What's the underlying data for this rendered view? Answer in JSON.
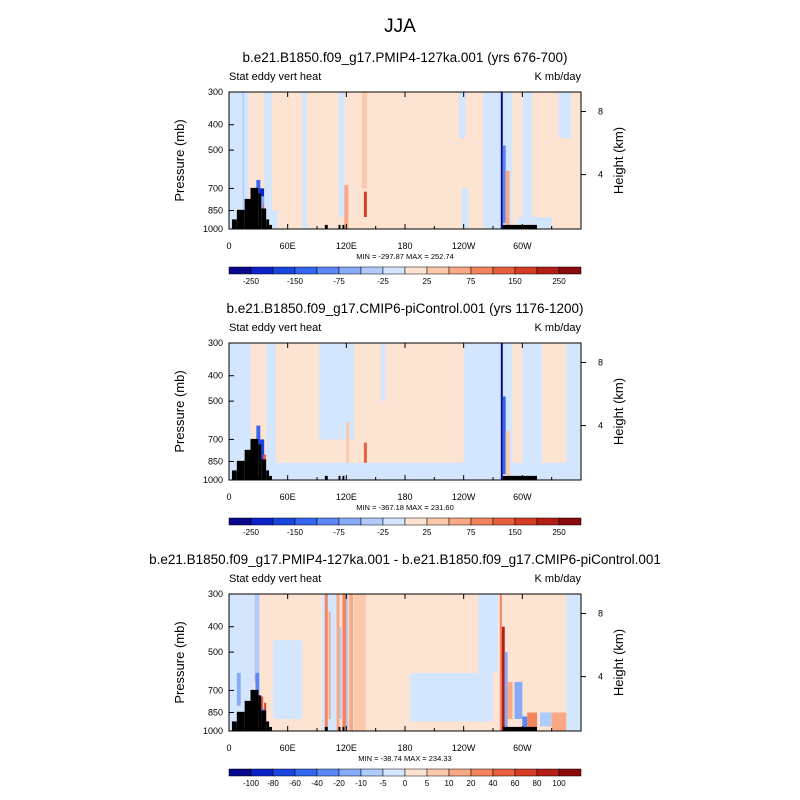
{
  "figure": {
    "title": "JJA"
  },
  "chart_data": [
    {
      "type": "heatmap",
      "title": "b.e21.B1850.f09_g17.PMIP4-127ka.001 (yrs 676-700)",
      "left_string": "Stat eddy vert heat",
      "right_string": "K mb/day",
      "ylabel": "Pressure (mb)",
      "ylabel_right": "Height (km)",
      "x_ticks": [
        "0",
        "60E",
        "120E",
        "180",
        "120W",
        "60W"
      ],
      "y_ticks": [
        "300",
        "400",
        "500",
        "700",
        "850",
        "1000"
      ],
      "y_right_ticks": [
        "8",
        "4"
      ],
      "stats": "MIN = -297.87   MAX = 252.74",
      "colorbar_labels": [
        "-250",
        "-150",
        "-75",
        "-25",
        "25",
        "75",
        "150",
        "250"
      ],
      "colorbar_levels": [
        -300,
        -250,
        -200,
        -150,
        -100,
        -75,
        -50,
        -25,
        0,
        25,
        50,
        75,
        100,
        150,
        200,
        250,
        300
      ],
      "x_range": [
        0,
        360
      ],
      "y_range_mb": [
        300,
        1000
      ],
      "y_scale": "log",
      "min": -297.87,
      "max": 252.74,
      "background_value": 10,
      "features": [
        {
          "lon": [
            0,
            20
          ],
          "p": [
            300,
            1000
          ],
          "value": -10
        },
        {
          "lon": [
            14,
            15.5
          ],
          "p": [
            300,
            1000
          ],
          "value": -40
        },
        {
          "lon": [
            28,
            32
          ],
          "p": [
            650,
            830
          ],
          "value": -120
        },
        {
          "lon": [
            31,
            36
          ],
          "p": [
            700,
            1000
          ],
          "value": -250
        },
        {
          "lon": [
            28,
            38
          ],
          "p": [
            750,
            1000
          ],
          "value": -60
        },
        {
          "lon": [
            35,
            38
          ],
          "p": [
            800,
            1000
          ],
          "value": 120
        },
        {
          "lon": [
            25,
            50
          ],
          "p": [
            850,
            1000
          ],
          "value": -10
        },
        {
          "lon": [
            36,
            44
          ],
          "p": [
            300,
            900
          ],
          "value": -12
        },
        {
          "lon": [
            75,
            80
          ],
          "p": [
            300,
            1000
          ],
          "value": -15
        },
        {
          "lon": [
            112,
            118
          ],
          "p": [
            300,
            900
          ],
          "value": -15
        },
        {
          "lon": [
            136,
            141
          ],
          "p": [
            300,
            700
          ],
          "value": 40
        },
        {
          "lon": [
            138,
            141
          ],
          "p": [
            720,
            900
          ],
          "value": 150
        },
        {
          "lon": [
            118,
            122
          ],
          "p": [
            680,
            1000
          ],
          "value": 60
        },
        {
          "lon": [
            235,
            242
          ],
          "p": [
            300,
            450
          ],
          "value": -10
        },
        {
          "lon": [
            238,
            245
          ],
          "p": [
            700,
            1000
          ],
          "value": -15
        },
        {
          "lon": [
            260,
            290
          ],
          "p": [
            300,
            1000
          ],
          "value": -10
        },
        {
          "lon": [
            278,
            280
          ],
          "p": [
            300,
            1000
          ],
          "value": -300
        },
        {
          "lon": [
            280,
            283
          ],
          "p": [
            480,
            950
          ],
          "value": -100
        },
        {
          "lon": [
            283,
            287
          ],
          "p": [
            600,
            1000
          ],
          "value": 50
        },
        {
          "lon": [
            300,
            310
          ],
          "p": [
            300,
            1000
          ],
          "value": -12
        },
        {
          "lon": [
            302,
            306
          ],
          "p": [
            930,
            1000
          ],
          "value": -80
        },
        {
          "lon": [
            295,
            330
          ],
          "p": [
            900,
            1000
          ],
          "value": -10
        },
        {
          "lon": [
            337,
            350
          ],
          "p": [
            300,
            450
          ],
          "value": -10
        }
      ]
    },
    {
      "type": "heatmap",
      "title": "b.e21.B1850.f09_g17.CMIP6-piControl.001 (yrs 1176-1200)",
      "left_string": "Stat eddy vert heat",
      "right_string": "K mb/day",
      "ylabel": "Pressure (mb)",
      "ylabel_right": "Height (km)",
      "x_ticks": [
        "0",
        "60E",
        "120E",
        "180",
        "120W",
        "60W"
      ],
      "y_ticks": [
        "300",
        "400",
        "500",
        "700",
        "850",
        "1000"
      ],
      "y_right_ticks": [
        "8",
        "4"
      ],
      "stats": "MIN = -367.18   MAX = 231.60",
      "colorbar_labels": [
        "-250",
        "-150",
        "-75",
        "-25",
        "25",
        "75",
        "150",
        "250"
      ],
      "colorbar_levels": [
        -300,
        -250,
        -200,
        -150,
        -100,
        -75,
        -50,
        -25,
        0,
        25,
        50,
        75,
        100,
        150,
        200,
        250,
        300
      ],
      "x_range": [
        0,
        360
      ],
      "y_range_mb": [
        300,
        1000
      ],
      "y_scale": "log",
      "min": -367.18,
      "max": 231.6,
      "background_value": 10,
      "features": [
        {
          "lon": [
            0,
            22
          ],
          "p": [
            300,
            1000
          ],
          "value": -10
        },
        {
          "lon": [
            28,
            32
          ],
          "p": [
            620,
            830
          ],
          "value": -150
        },
        {
          "lon": [
            31,
            36
          ],
          "p": [
            700,
            1000
          ],
          "value": -200
        },
        {
          "lon": [
            35,
            38
          ],
          "p": [
            800,
            1000
          ],
          "value": 100
        },
        {
          "lon": [
            20,
            55
          ],
          "p": [
            860,
            1000
          ],
          "value": -12
        },
        {
          "lon": [
            38,
            48
          ],
          "p": [
            300,
            900
          ],
          "value": -12
        },
        {
          "lon": [
            92,
            128
          ],
          "p": [
            300,
            700
          ],
          "value": -10
        },
        {
          "lon": [
            120,
            123
          ],
          "p": [
            600,
            1000
          ],
          "value": 30
        },
        {
          "lon": [
            138,
            141
          ],
          "p": [
            720,
            900
          ],
          "value": 100
        },
        {
          "lon": [
            155,
            160
          ],
          "p": [
            300,
            500
          ],
          "value": -10
        },
        {
          "lon": [
            240,
            290
          ],
          "p": [
            300,
            1000
          ],
          "value": -12
        },
        {
          "lon": [
            0,
            360
          ],
          "p": [
            860,
            1000
          ],
          "value": -10
        },
        {
          "lon": [
            278,
            280
          ],
          "p": [
            300,
            1000
          ],
          "value": -360
        },
        {
          "lon": [
            280,
            283
          ],
          "p": [
            480,
            950
          ],
          "value": -150
        },
        {
          "lon": [
            283,
            287
          ],
          "p": [
            650,
            1000
          ],
          "value": 40
        },
        {
          "lon": [
            300,
            320
          ],
          "p": [
            300,
            1000
          ],
          "value": -10
        },
        {
          "lon": [
            345,
            360
          ],
          "p": [
            300,
            1000
          ],
          "value": -10
        }
      ]
    },
    {
      "type": "heatmap",
      "title": "b.e21.B1850.f09_g17.PMIP4-127ka.001 - b.e21.B1850.f09_g17.CMIP6-piControl.001",
      "left_string": "Stat eddy vert heat",
      "right_string": "K mb/day",
      "ylabel": "Pressure (mb)",
      "ylabel_right": "Height (km)",
      "x_ticks": [
        "0",
        "60E",
        "120E",
        "180",
        "120W",
        "60W"
      ],
      "y_ticks": [
        "300",
        "400",
        "500",
        "700",
        "850",
        "1000"
      ],
      "y_right_ticks": [
        "8",
        "4"
      ],
      "stats": "MIN = -38.74   MAX = 234.33",
      "colorbar_labels": [
        "-100",
        "-80",
        "-60",
        "-40",
        "-20",
        "-10",
        "-5",
        "0",
        "5",
        "10",
        "20",
        "40",
        "60",
        "80",
        "100"
      ],
      "colorbar_levels": [
        -120,
        -100,
        -80,
        -60,
        -40,
        -20,
        -10,
        -5,
        0,
        5,
        10,
        20,
        40,
        60,
        80,
        100,
        120
      ],
      "x_range": [
        0,
        360
      ],
      "y_range_mb": [
        300,
        1000
      ],
      "y_scale": "log",
      "min": -38.74,
      "max": 234.33,
      "background_value": 3,
      "features": [
        {
          "lon": [
            0,
            25
          ],
          "p": [
            300,
            1000
          ],
          "value": -4
        },
        {
          "lon": [
            26,
            31
          ],
          "p": [
            300,
            650
          ],
          "value": -7
        },
        {
          "lon": [
            27,
            31
          ],
          "p": [
            600,
            900
          ],
          "value": -25
        },
        {
          "lon": [
            30,
            35
          ],
          "p": [
            740,
            1000
          ],
          "value": 40
        },
        {
          "lon": [
            33,
            36
          ],
          "p": [
            820,
            1000
          ],
          "value": -30
        },
        {
          "lon": [
            36,
            38
          ],
          "p": [
            780,
            1000
          ],
          "value": 60
        },
        {
          "lon": [
            8,
            12
          ],
          "p": [
            600,
            800
          ],
          "value": -15
        },
        {
          "lon": [
            45,
            75
          ],
          "p": [
            450,
            900
          ],
          "value": -4
        },
        {
          "lon": [
            95,
            110
          ],
          "p": [
            300,
            1000
          ],
          "value": -4
        },
        {
          "lon": [
            98,
            101
          ],
          "p": [
            300,
            1000
          ],
          "value": 30
        },
        {
          "lon": [
            102,
            104
          ],
          "p": [
            350,
            900
          ],
          "value": 12
        },
        {
          "lon": [
            110,
            113
          ],
          "p": [
            300,
            1000
          ],
          "value": 15
        },
        {
          "lon": [
            113,
            115
          ],
          "p": [
            400,
            900
          ],
          "value": -8
        },
        {
          "lon": [
            116,
            120
          ],
          "p": [
            300,
            1000
          ],
          "value": 25
        },
        {
          "lon": [
            120,
            122
          ],
          "p": [
            300,
            1000
          ],
          "value": -6
        },
        {
          "lon": [
            123,
            127
          ],
          "p": [
            300,
            1000
          ],
          "value": 12
        },
        {
          "lon": [
            128,
            140
          ],
          "p": [
            300,
            1000
          ],
          "value": 7
        },
        {
          "lon": [
            185,
            270
          ],
          "p": [
            600,
            920
          ],
          "value": -4
        },
        {
          "lon": [
            255,
            275
          ],
          "p": [
            300,
            600
          ],
          "value": -4
        },
        {
          "lon": [
            277,
            279
          ],
          "p": [
            300,
            1000
          ],
          "value": 30
        },
        {
          "lon": [
            279,
            282
          ],
          "p": [
            400,
            1000
          ],
          "value": 80
        },
        {
          "lon": [
            282,
            285
          ],
          "p": [
            500,
            1000
          ],
          "value": -15
        },
        {
          "lon": [
            285,
            290
          ],
          "p": [
            650,
            900
          ],
          "value": 10
        },
        {
          "lon": [
            292,
            300
          ],
          "p": [
            650,
            900
          ],
          "value": -12
        },
        {
          "lon": [
            300,
            305
          ],
          "p": [
            880,
            1000
          ],
          "value": -40
        },
        {
          "lon": [
            305,
            315
          ],
          "p": [
            850,
            1000
          ],
          "value": 30
        },
        {
          "lon": [
            318,
            330
          ],
          "p": [
            850,
            960
          ],
          "value": -10
        },
        {
          "lon": [
            330,
            345
          ],
          "p": [
            850,
            1000
          ],
          "value": 15
        },
        {
          "lon": [
            345,
            360
          ],
          "p": [
            300,
            1000
          ],
          "value": -4
        }
      ]
    }
  ],
  "colors": {
    "colormap": [
      "#08088c",
      "#0a22c8",
      "#1a44e0",
      "#3466f0",
      "#5b88f6",
      "#86abf8",
      "#aecbfb",
      "#d4e6fd",
      "#fde3d2",
      "#fcc8ac",
      "#f9a883",
      "#f3845e",
      "#e95e3d",
      "#d43c24",
      "#b21d14",
      "#8a0b0b"
    ],
    "topography": "#000000",
    "frame": "#000000"
  }
}
